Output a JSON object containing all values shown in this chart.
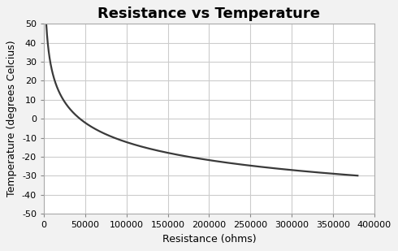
{
  "title": "Resistance vs Temperature",
  "xlabel": "Resistance (ohms)",
  "ylabel": "Temperature (degrees Celcius)",
  "xlim": [
    0,
    400000
  ],
  "ylim": [
    -50,
    50
  ],
  "xticks": [
    0,
    50000,
    100000,
    150000,
    200000,
    250000,
    300000,
    350000,
    400000
  ],
  "yticks": [
    -50,
    -40,
    -30,
    -20,
    -10,
    0,
    10,
    20,
    30,
    40,
    50
  ],
  "xtick_labels": [
    "0",
    "50000",
    "100000",
    "150000",
    "200000",
    "250000",
    "300000",
    "350000",
    "400000"
  ],
  "ytick_labels": [
    "-50",
    "-40",
    "-30",
    "-20",
    "-10",
    "0",
    "10",
    "20",
    "30",
    "40",
    "50"
  ],
  "line_color": "#3a3a3a",
  "line_width": 1.6,
  "background_color": "#f2f2f2",
  "plot_background": "#ffffff",
  "grid_color": "#cccccc",
  "title_fontsize": 13,
  "axis_label_fontsize": 9,
  "tick_fontsize": 8,
  "beta": 4800,
  "R0": 10000,
  "T0_celsius": 25
}
